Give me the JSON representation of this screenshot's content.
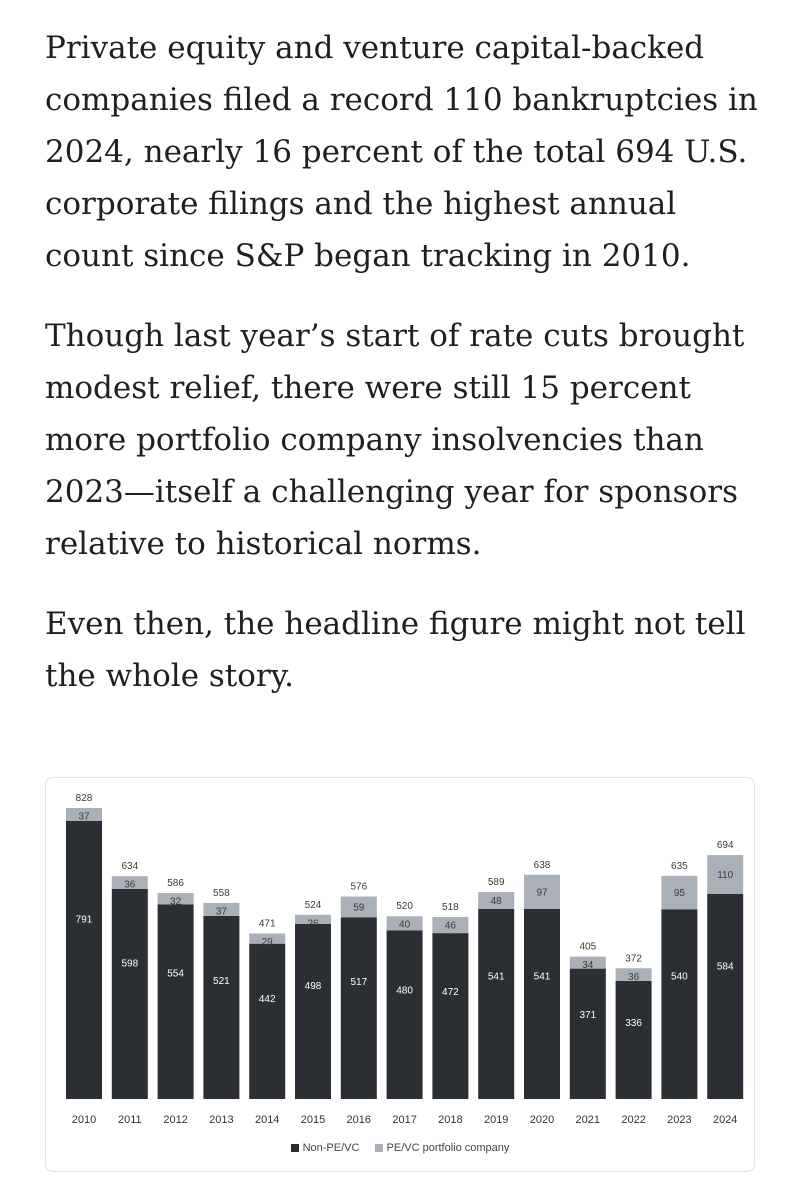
{
  "article": {
    "paragraphs": [
      "Private equity and venture capital-backed companies filed a record 110 bankruptcies in 2024, nearly 16 percent of the total 694 U.S. corporate filings and the highest annual count since S&P began tracking in 2010.",
      "Though last year’s start of rate cuts brought modest relief, there were still 15 percent more portfolio company insolvencies than 2023—itself a challenging year for sponsors relative to historical norms.",
      "Even then, the headline figure might not tell the whole story."
    ]
  },
  "chart_data": {
    "type": "bar",
    "stacked": true,
    "categories": [
      "2010",
      "2011",
      "2012",
      "2013",
      "2014",
      "2015",
      "2016",
      "2017",
      "2018",
      "2019",
      "2020",
      "2021",
      "2022",
      "2023",
      "2024"
    ],
    "series": [
      {
        "name": "Non-PE/VC",
        "values": [
          791,
          598,
          554,
          521,
          442,
          498,
          517,
          480,
          472,
          541,
          541,
          371,
          336,
          540,
          584
        ],
        "color": "#2b2e33"
      },
      {
        "name": "PE/VC portfolio company",
        "values": [
          37,
          36,
          32,
          37,
          29,
          26,
          59,
          40,
          46,
          48,
          97,
          34,
          36,
          95,
          110
        ],
        "color": "#a9b0b8"
      }
    ],
    "totals": [
      828,
      634,
      586,
      558,
      471,
      524,
      576,
      520,
      518,
      589,
      638,
      405,
      372,
      635,
      694
    ],
    "title": "",
    "xlabel": "",
    "ylabel": "",
    "ylim": [
      0,
      828
    ],
    "grid": false,
    "legend_position": "bottom-center"
  }
}
